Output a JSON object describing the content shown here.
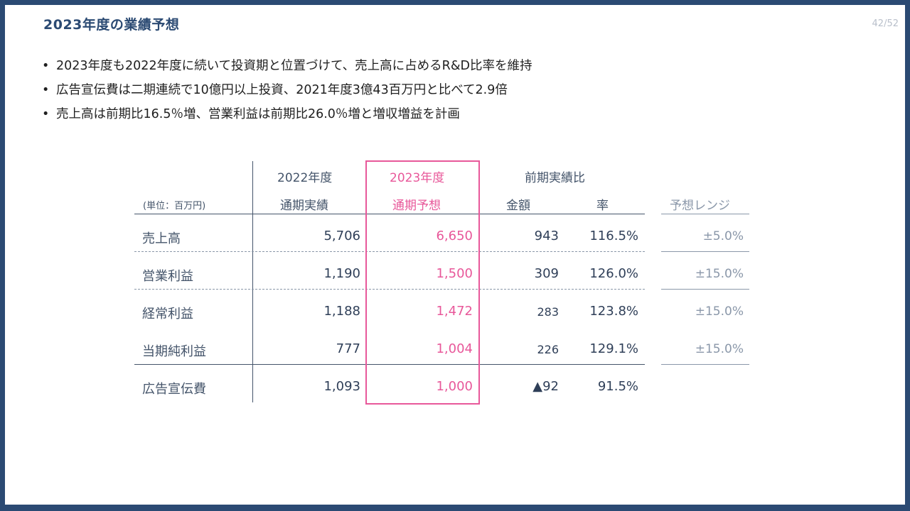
{
  "slide": {
    "title": "2023年度の業績予想",
    "page": "42/52"
  },
  "bullets": [
    "2023年度も2022年度に続いて投資期と位置づけて、売上高に占めるR&D比率を維持",
    "広告宣伝費は二期連続で10億円以上投資、2021年度3億43百万円と比べて2.9倍",
    "売上高は前期比16.5％増、営業利益は前期比26.0％増と増収増益を計画"
  ],
  "table": {
    "unit": "(単位：百万円)",
    "col_2022": {
      "line1": "2022年度",
      "line2": "通期実績"
    },
    "col_2023": {
      "line1": "2023年度",
      "line2": "通期予想"
    },
    "col_prev": {
      "line1": "前期実績比",
      "amount": "金額",
      "rate": "率"
    },
    "col_range": "予想レンジ",
    "rows": [
      {
        "label": "売上高",
        "v2022": "5,706",
        "v2023": "6,650",
        "amount": "943",
        "rate": "116.5%",
        "range": "±5.0%"
      },
      {
        "label": "営業利益",
        "v2022": "1,190",
        "v2023": "1,500",
        "amount": "309",
        "rate": "126.0%",
        "range": "±15.0%"
      },
      {
        "label": "経常利益",
        "v2022": "1,188",
        "v2023": "1,472",
        "amount": "283",
        "rate": "123.8%",
        "range": "±15.0%"
      },
      {
        "label": "当期純利益",
        "v2022": "777",
        "v2023": "1,004",
        "amount": "226",
        "rate": "129.1%",
        "range": "±15.0%"
      },
      {
        "label": "広告宣伝費",
        "v2022": "1,093",
        "v2023": "1,000",
        "amount": "▲92",
        "rate": "91.5%",
        "range": ""
      }
    ]
  },
  "colors": {
    "frame": "#2b4a73",
    "accent_pink": "#e8589a",
    "text_slate": "#44546a"
  }
}
